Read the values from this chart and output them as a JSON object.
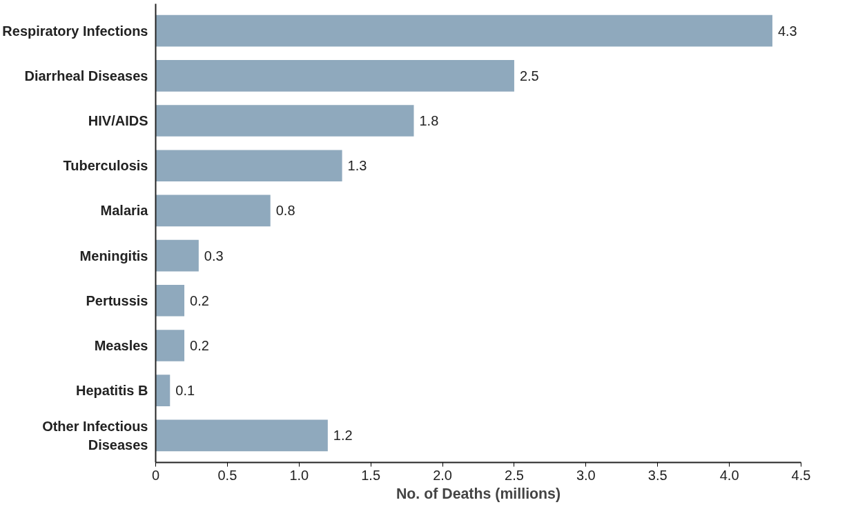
{
  "chart_data": {
    "type": "bar",
    "orientation": "horizontal",
    "xlabel": "No. of Deaths (millions)",
    "categories": [
      "Respiratory Infections",
      "Diarrheal Diseases",
      "HIV/AIDS",
      "Tuberculosis",
      "Malaria",
      "Meningitis",
      "Pertussis",
      "Measles",
      "Hepatitis B",
      "Other Infectious Diseases"
    ],
    "values": [
      4.3,
      2.5,
      1.8,
      1.3,
      0.8,
      0.3,
      0.2,
      0.2,
      0.1,
      1.2
    ],
    "color": "#8fa9bd",
    "data_labels": true,
    "grid": false,
    "xlim": [
      0,
      4.5
    ],
    "xticks": [
      0,
      0.5,
      {
        "value": 1,
        "label": "1.0"
      },
      1.5,
      {
        "value": 2,
        "label": "2.0"
      },
      2.5,
      {
        "value": 3,
        "label": "3.0"
      },
      3.5,
      {
        "value": 4,
        "label": "4.0"
      },
      4.5
    ]
  }
}
